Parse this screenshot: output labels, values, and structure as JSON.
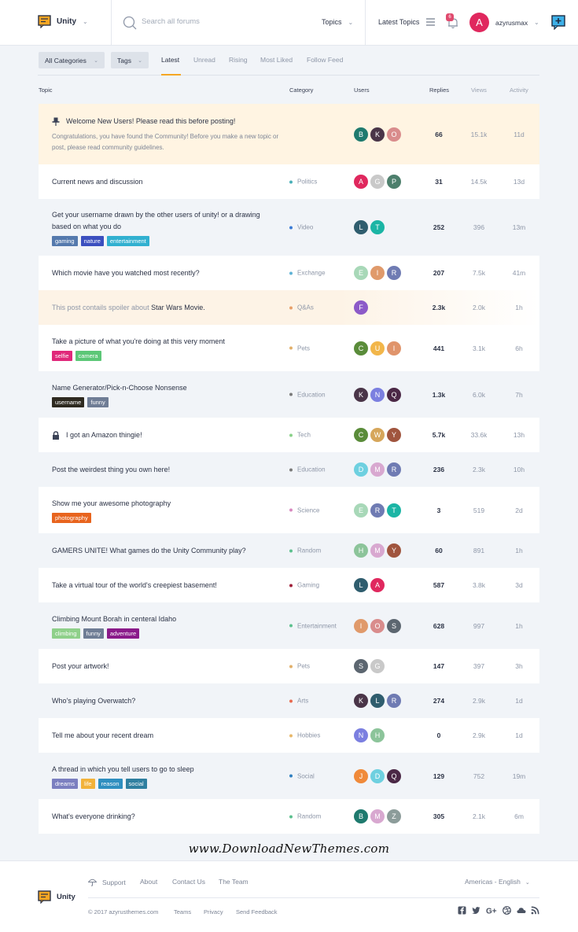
{
  "header": {
    "brand": "Unity",
    "search_placeholder": "Search all forums",
    "topics_label": "Topics",
    "latest_topics_label": "Latest Topics",
    "notifications_count": "6",
    "user_initial": "A",
    "username": "azyrusmax"
  },
  "filters": {
    "categories_label": "All Categories",
    "tags_label": "Tags",
    "tabs": [
      "Latest",
      "Unread",
      "Rising",
      "Most Liked",
      "Follow Feed"
    ]
  },
  "columns": {
    "topic": "Topic",
    "category": "Category",
    "users": "Users",
    "replies": "Replies",
    "views": "Views",
    "activity": "Activity"
  },
  "topics": [
    {
      "title": "Welcome New Users! Please read this before posting!",
      "description": "Congratulations, you have found the Community! Before you make a new topic or post, please read community guidelines.",
      "category": "",
      "category_color": "",
      "users": [
        {
          "i": "B",
          "c": "#1f7a6e"
        },
        {
          "i": "K",
          "c": "#4a3548"
        },
        {
          "i": "O",
          "c": "#d98c8c"
        }
      ],
      "replies": "66",
      "views": "15.1k",
      "activity": "11d",
      "tags": [],
      "state": "pinned"
    },
    {
      "title": "Current news and discussion",
      "category": "Politics",
      "category_color": "#4ab0b8",
      "users": [
        {
          "i": "A",
          "c": "#e0285e"
        },
        {
          "i": "G",
          "c": "#c9c9c9"
        },
        {
          "i": "P",
          "c": "#4d7f6c"
        }
      ],
      "replies": "31",
      "views": "14.5k",
      "activity": "13d",
      "tags": []
    },
    {
      "title": "Get your username drawn by the other users of unity! or a drawing based on what you do",
      "category": "Video",
      "category_color": "#3a7bd5",
      "users": [
        {
          "i": "L",
          "c": "#2f5d6e"
        },
        {
          "i": "T",
          "c": "#1bb5a5"
        }
      ],
      "replies": "252",
      "views": "396",
      "activity": "13m",
      "tags": [
        {
          "t": "gaming",
          "c": "#5479ad"
        },
        {
          "t": "nature",
          "c": "#3b4fbf"
        },
        {
          "t": "entertainment",
          "c": "#31b0d0"
        }
      ]
    },
    {
      "title": "Which movie have you watched most recently?",
      "category": "Exchange",
      "category_color": "#5fb3d6",
      "users": [
        {
          "i": "E",
          "c": "#a8d8b8"
        },
        {
          "i": "I",
          "c": "#e09a6b"
        },
        {
          "i": "R",
          "c": "#6f7bb3"
        }
      ],
      "replies": "207",
      "views": "7.5k",
      "activity": "41m",
      "tags": []
    },
    {
      "title": "This post contails spoiler about",
      "title_emphasis": "Star Wars Movie.",
      "category": "Q&As",
      "category_color": "#e8a06a",
      "users": [
        {
          "i": "F",
          "c": "#8c5ac8"
        }
      ],
      "replies": "2.3k",
      "views": "2.0k",
      "activity": "1h",
      "tags": [],
      "state": "spoiler"
    },
    {
      "title": "Take a picture of what you're doing at this very moment",
      "category": "Pets",
      "category_color": "#e2b06b",
      "users": [
        {
          "i": "C",
          "c": "#5a8c3a"
        },
        {
          "i": "U",
          "c": "#f2b64a"
        },
        {
          "i": "I",
          "c": "#e0946b"
        }
      ],
      "replies": "441",
      "views": "3.1k",
      "activity": "6h",
      "tags": [
        {
          "t": "selfie",
          "c": "#e0287a"
        },
        {
          "t": "camera",
          "c": "#5cc777"
        }
      ]
    },
    {
      "title": "Name Generator/Pick-n-Choose Nonsense",
      "category": "Education",
      "category_color": "#7a7a7a",
      "users": [
        {
          "i": "K",
          "c": "#4a3548"
        },
        {
          "i": "N",
          "c": "#7b7fe0"
        },
        {
          "i": "Q",
          "c": "#4b2846"
        }
      ],
      "replies": "1.3k",
      "views": "6.0k",
      "activity": "7h",
      "tags": [
        {
          "t": "username",
          "c": "#2e2a20"
        },
        {
          "t": "funny",
          "c": "#6f7d95"
        }
      ]
    },
    {
      "title": "I got an Amazon thingie!",
      "category": "Tech",
      "category_color": "#8ad18a",
      "users": [
        {
          "i": "C",
          "c": "#5a8c3a"
        },
        {
          "i": "W",
          "c": "#d6a65b"
        },
        {
          "i": "Y",
          "c": "#a0553e"
        }
      ],
      "replies": "5.7k",
      "views": "33.6k",
      "activity": "13h",
      "tags": [],
      "state": "locked"
    },
    {
      "title": "Post the weirdest thing you own here!",
      "category": "Education",
      "category_color": "#7a7a7a",
      "users": [
        {
          "i": "D",
          "c": "#6ed0e0"
        },
        {
          "i": "M",
          "c": "#d8a8d0"
        },
        {
          "i": "R",
          "c": "#6f7bb3"
        }
      ],
      "replies": "236",
      "views": "2.3k",
      "activity": "10h",
      "tags": []
    },
    {
      "title": "Show me your awesome photography",
      "category": "Science",
      "category_color": "#d88ac0",
      "users": [
        {
          "i": "E",
          "c": "#a8d8b8"
        },
        {
          "i": "R",
          "c": "#6f7bb3"
        },
        {
          "i": "T",
          "c": "#1bb5a5"
        }
      ],
      "replies": "3",
      "views": "519",
      "activity": "2d",
      "tags": [
        {
          "t": "photography",
          "c": "#e8641e"
        }
      ]
    },
    {
      "title": "GAMERS UNITE! What games do the Unity Community play?",
      "category": "Random",
      "category_color": "#5cc08e",
      "users": [
        {
          "i": "H",
          "c": "#8cc49a"
        },
        {
          "i": "M",
          "c": "#d8a8d0"
        },
        {
          "i": "Y",
          "c": "#a0553e"
        }
      ],
      "replies": "60",
      "views": "891",
      "activity": "1h",
      "tags": []
    },
    {
      "title": "Take a virtual tour of the world's creepiest basement!",
      "category": "Gaming",
      "category_color": "#a0203a",
      "users": [
        {
          "i": "L",
          "c": "#2f5d6e"
        },
        {
          "i": "A",
          "c": "#e0285e"
        }
      ],
      "replies": "587",
      "views": "3.8k",
      "activity": "3d",
      "tags": []
    },
    {
      "title": "Climbing Mount Borah in centeral Idaho",
      "category": "Entertainment",
      "category_color": "#5cc08e",
      "users": [
        {
          "i": "I",
          "c": "#e09a6b"
        },
        {
          "i": "O",
          "c": "#d98c8c"
        },
        {
          "i": "S",
          "c": "#5c6670"
        }
      ],
      "replies": "628",
      "views": "997",
      "activity": "1h",
      "tags": [
        {
          "t": "climbing",
          "c": "#8fd08a"
        },
        {
          "t": "funny",
          "c": "#6f7d95"
        },
        {
          "t": "adventure",
          "c": "#8a1a8a"
        }
      ]
    },
    {
      "title": "Post your artwork!",
      "category": "Pets",
      "category_color": "#e2b06b",
      "users": [
        {
          "i": "S",
          "c": "#5c6670"
        },
        {
          "i": "G",
          "c": "#c9c9c9"
        }
      ],
      "replies": "147",
      "views": "397",
      "activity": "3h",
      "tags": []
    },
    {
      "title": "Who's playing Overwatch?",
      "category": "Arts",
      "category_color": "#e86a50",
      "users": [
        {
          "i": "K",
          "c": "#4a3548"
        },
        {
          "i": "L",
          "c": "#2f5d6e"
        },
        {
          "i": "R",
          "c": "#6f7bb3"
        }
      ],
      "replies": "274",
      "views": "2.9k",
      "activity": "1d",
      "tags": []
    },
    {
      "title": "Tell me about your recent dream",
      "category": "Hobbies",
      "category_color": "#e8b86a",
      "users": [
        {
          "i": "N",
          "c": "#7b7fe0"
        },
        {
          "i": "H",
          "c": "#8cc49a"
        }
      ],
      "replies": "0",
      "views": "2.9k",
      "activity": "1d",
      "tags": []
    },
    {
      "title": "A thread in which you tell users to go to sleep",
      "category": "Social",
      "category_color": "#2f7fc0",
      "users": [
        {
          "i": "J",
          "c": "#f08a3a"
        },
        {
          "i": "D",
          "c": "#6ed0e0"
        },
        {
          "i": "Q",
          "c": "#4b2846"
        }
      ],
      "replies": "129",
      "views": "752",
      "activity": "19m",
      "tags": [
        {
          "t": "dreams",
          "c": "#7b7fc0"
        },
        {
          "t": "life",
          "c": "#f2b23a"
        },
        {
          "t": "reason",
          "c": "#2f8fc0"
        },
        {
          "t": "social",
          "c": "#2f7fa0"
        }
      ]
    },
    {
      "title": "What's everyone drinking?",
      "category": "Random",
      "category_color": "#5cc08e",
      "users": [
        {
          "i": "B",
          "c": "#1f7a6e"
        },
        {
          "i": "M",
          "c": "#d8a8d0"
        },
        {
          "i": "Z",
          "c": "#8c9c9a"
        }
      ],
      "replies": "305",
      "views": "2.1k",
      "activity": "6m",
      "tags": []
    }
  ],
  "watermark": "www.DownloadNewThemes.com",
  "footer": {
    "brand": "Unity",
    "links": [
      "Support",
      "About",
      "Contact Us",
      "The Team"
    ],
    "language": "Americas - English",
    "copyright": "© 2017 azyrusthemes.com",
    "small_links": [
      "Teams",
      "Privacy",
      "Send Feedback"
    ]
  },
  "colors": {
    "accent": "#f5a623",
    "pinned_bg": "#fff4e2",
    "alt_row_bg": "#f1f4f8"
  }
}
